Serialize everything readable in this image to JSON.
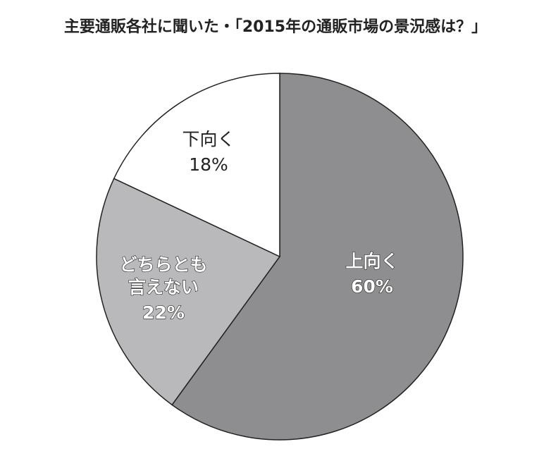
{
  "chart_data": {
    "type": "pie",
    "title": "主要通販各社に聞いた・「2015年の通販市場の景況感は？」",
    "categories": [
      "上向く",
      "どちらとも\n言えない",
      "下向く"
    ],
    "values": [
      60,
      22,
      18
    ],
    "value_labels": [
      "60%",
      "22%",
      "18%"
    ],
    "colors": [
      "#8e8e90",
      "#b9b9bb",
      "#ffffff"
    ]
  }
}
